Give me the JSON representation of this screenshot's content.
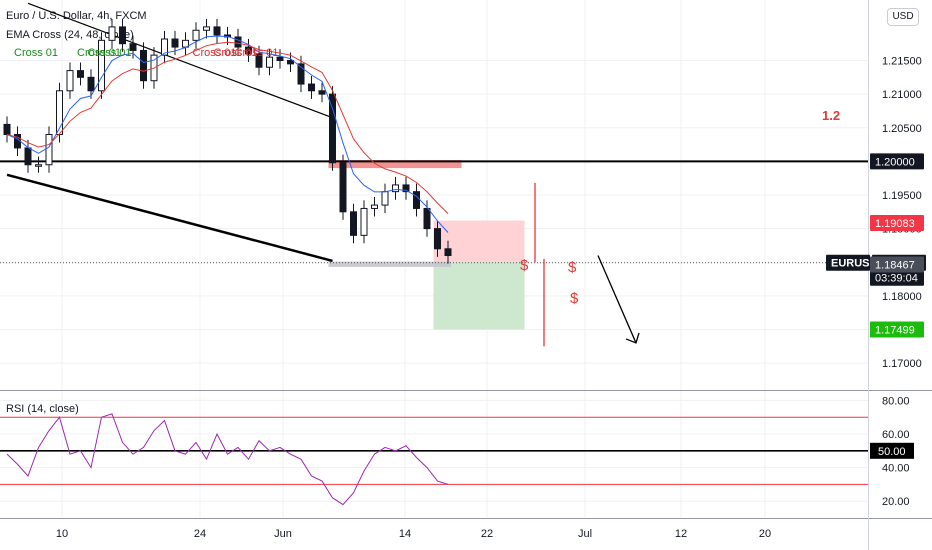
{
  "header": {
    "symbol_line": "Euro / U.S. Dollar, 4h, FXCM",
    "indicator_line": "EMA Cross (24, 48, close)",
    "currency_button": "USD"
  },
  "colors": {
    "grid": "#eef0f3",
    "candle": "#131722",
    "ema_fast": "#2962ff",
    "ema_slow": "#e53935",
    "annotation_red": "#e53935",
    "rsi_line": "#9c27b0",
    "rsi_bands": "#f23645",
    "stop_zone": "#ffcdd2",
    "target_zone": "#c8e6c9",
    "resistance_zone": "#f08080",
    "price_tag_dark": "#131722",
    "price_tag_red": "#f23645",
    "price_tag_green": "#1cbc0c",
    "price_tag_gray": "#4a4e59"
  },
  "chart_data": [
    {
      "type": "candlestick",
      "panel": "price",
      "title": "Euro / U.S. Dollar, 4h, FXCM",
      "symbol": "EURUSD",
      "ylim": [
        1.166,
        1.224
      ],
      "y_ticks": [
        "1.21500",
        "1.21000",
        "1.20500",
        "1.20000",
        "1.19500",
        "1.19000",
        "1.18500",
        "1.18000",
        "1.17500",
        "1.17000"
      ],
      "y_tick_values": [
        1.215,
        1.21,
        1.205,
        1.2,
        1.195,
        1.19,
        1.185,
        1.18,
        1.175,
        1.17
      ],
      "x_tick_labels": [
        "10",
        "24",
        "Jun",
        "14",
        "22",
        "Jul",
        "12",
        "20"
      ],
      "series": [
        {
          "name": "EMA Cross (24, 48, close)",
          "close": [
            1.204,
            1.202,
            1.1995,
            1.1995,
            1.204,
            1.2105,
            1.2135,
            1.2125,
            1.2105,
            1.218,
            1.22,
            1.2175,
            1.2165,
            1.212,
            1.2158,
            1.2182,
            1.217,
            1.218,
            1.2195,
            1.22,
            1.2188,
            1.2185,
            1.217,
            1.216,
            1.214,
            1.2155,
            1.215,
            1.2145,
            1.2115,
            1.2105,
            1.21,
            1.1998,
            1.1925,
            1.189,
            1.193,
            1.1935,
            1.1955,
            1.1965,
            1.1955,
            1.193,
            1.19,
            1.187,
            1.186
          ]
        }
      ],
      "price_labels": [
        {
          "label": "1.20000",
          "style": "dark",
          "value": 1.2
        },
        {
          "label": "1.19083",
          "style": "red",
          "value": 1.19083
        },
        {
          "label": "EURUSD",
          "style": "dark",
          "value": 1.18493
        },
        {
          "label": "1.18493",
          "style": "dark",
          "value": 1.18493
        },
        {
          "label": "03:39:04",
          "style": "dark",
          "value": 1.18493
        },
        {
          "label": "1.18467",
          "style": "gray",
          "value": 1.18467
        },
        {
          "label": "1.17499",
          "style": "green",
          "value": 1.17499
        }
      ],
      "annotations": [
        "1.2",
        "$",
        "$",
        "$"
      ],
      "cross_labels": [
        {
          "text": "Cross 01",
          "color": "green",
          "candle": 2
        },
        {
          "text": "Cross 01",
          "color": "green",
          "candle": 8
        },
        {
          "text": "Cross 01",
          "color": "green",
          "candle": 9
        },
        {
          "text": "Cross 01",
          "color": "red",
          "candle": 19
        },
        {
          "text": "Cross 01",
          "color": "red",
          "candle": 21
        },
        {
          "text": "Cross 01",
          "color": "red",
          "candle": 23
        }
      ],
      "horizontal_levels": [
        1.2
      ],
      "trendlines": [
        {
          "from": [
            2,
            1.2235
          ],
          "to": [
            31,
            1.2065
          ]
        },
        {
          "from": [
            0,
            1.198
          ],
          "to": [
            31,
            1.1852
          ]
        }
      ],
      "zones": [
        {
          "kind": "resistance",
          "from": 31,
          "to": 43,
          "y": [
            1.199,
            1.2002
          ]
        },
        {
          "kind": "stop",
          "from": 41,
          "to": 49,
          "y": [
            1.185,
            1.1912
          ]
        },
        {
          "kind": "target",
          "from": 41,
          "to": 49,
          "y": [
            1.175,
            1.185
          ]
        },
        {
          "kind": "support",
          "from": 31,
          "to": 42,
          "y": [
            1.1843,
            1.1851
          ]
        }
      ]
    },
    {
      "type": "line",
      "panel": "rsi",
      "title": "RSI (14, close)",
      "ylim": [
        10,
        85
      ],
      "y_ticks": [
        "80.00",
        "60.00",
        "50.00",
        "40.00",
        "20.00"
      ],
      "y_tick_values": [
        80,
        60,
        50,
        40,
        20
      ],
      "bands": [
        70,
        30
      ],
      "midline": 50,
      "series": [
        {
          "name": "RSI (14, close)",
          "values": [
            48,
            42,
            35,
            52,
            62,
            70,
            48,
            50,
            40,
            70,
            72,
            55,
            48,
            52,
            62,
            68,
            50,
            48,
            55,
            45,
            60,
            48,
            52,
            45,
            56,
            50,
            52,
            48,
            45,
            35,
            32,
            22,
            18,
            25,
            38,
            48,
            52,
            50,
            53,
            46,
            40,
            32,
            30
          ]
        }
      ]
    }
  ]
}
